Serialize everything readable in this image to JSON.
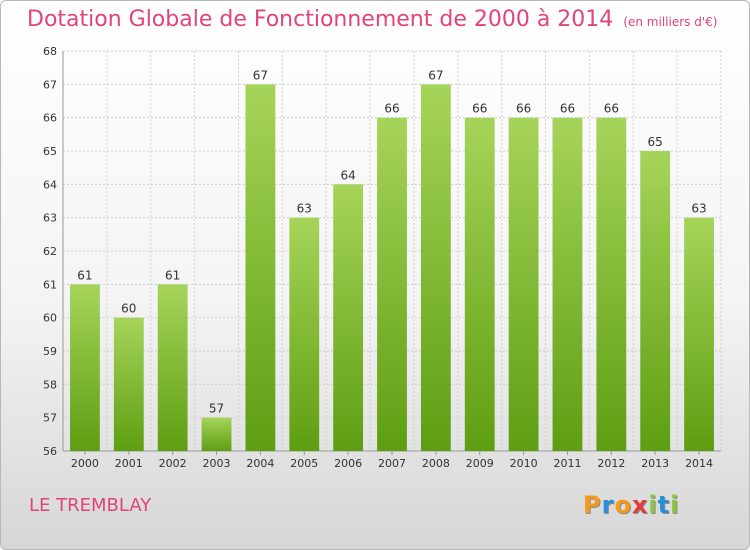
{
  "title": "Dotation Globale de Fonctionnement de 2000 à 2014",
  "subtitle": "(en milliers d'€)",
  "city": "LE TREMBLAY",
  "logo": {
    "letters": [
      "P",
      "r",
      "o",
      "x",
      "i",
      "t",
      "i"
    ],
    "colors": [
      "#f39a1e",
      "#2a8fd8",
      "#f39a1e",
      "#e23c3c",
      "#8cc63f",
      "#2a8fd8",
      "#8cc63f"
    ]
  },
  "colors": {
    "title": "#e0447a",
    "bar_top": "#a6d45a",
    "bar_bottom": "#5e9e12",
    "grid": "#cfcfcf",
    "axis_text": "#333333"
  },
  "chart_data": {
    "type": "bar",
    "categories": [
      "2000",
      "2001",
      "2002",
      "2003",
      "2004",
      "2005",
      "2006",
      "2007",
      "2008",
      "2009",
      "2010",
      "2011",
      "2012",
      "2013",
      "2014"
    ],
    "values": [
      61,
      60,
      61,
      57,
      67,
      63,
      64,
      66,
      67,
      66,
      66,
      66,
      66,
      65,
      63
    ],
    "ylim": [
      56,
      68
    ],
    "yticks": [
      56,
      57,
      58,
      59,
      60,
      61,
      62,
      63,
      64,
      65,
      66,
      67,
      68
    ],
    "grid": true,
    "data_labels": true
  }
}
